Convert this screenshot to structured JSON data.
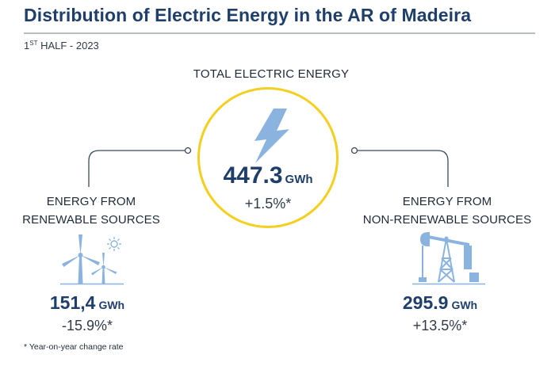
{
  "header": {
    "title": "Distribution of Electric Energy in the AR of Madeira",
    "period_main": "1",
    "period_sup": "ST",
    "period_rest": " HALF - 2023"
  },
  "total": {
    "label": "TOTAL ELECTRIC ENERGY",
    "value": "447.3",
    "unit": "GWh",
    "change": "+1.5%*"
  },
  "renewable": {
    "label_line1": "ENERGY FROM",
    "label_line2": "RENEWABLE SOURCES",
    "value": "151,4",
    "unit": "GWh",
    "change": "-15.9%*"
  },
  "non_renewable": {
    "label_line1": "ENERGY FROM",
    "label_line2": "NON-RENEWABLE SOURCES",
    "value": "295.9",
    "unit": "GWh",
    "change": "+13.5%*"
  },
  "footnote": "* Year-on-year change rate",
  "colors": {
    "title": "#1f3f6b",
    "ring": "#f5cf1f",
    "icon_blue": "#8ab4df",
    "connector": "#3a4a5c"
  },
  "icons": {
    "center": "lightning-bolt-icon",
    "left": "wind-turbines-sun-icon",
    "right": "oil-pumpjack-icon"
  }
}
